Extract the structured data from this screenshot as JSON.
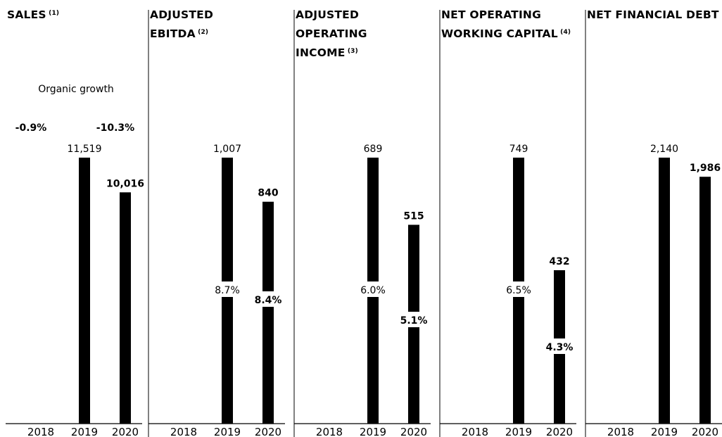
{
  "chart_data": [
    {
      "type": "bar",
      "title": "SALES",
      "note": "(1)",
      "categories": [
        "2018",
        "2019",
        "2020"
      ],
      "values": [
        null,
        11519,
        10016
      ],
      "labels": [
        "",
        "11,519",
        "10,016"
      ],
      "ratios": [
        "",
        "",
        ""
      ],
      "growth_caption": "Organic growth",
      "growth": [
        "-0.9%",
        "",
        "-10.3%"
      ]
    },
    {
      "type": "bar",
      "title": "ADJUSTED EBITDA",
      "note": "(2)",
      "categories": [
        "2018",
        "2019",
        "2020"
      ],
      "values": [
        null,
        1007,
        840
      ],
      "labels": [
        "",
        "1,007",
        "840"
      ],
      "ratios": [
        "",
        "8.7%",
        "8.4%"
      ]
    },
    {
      "type": "bar",
      "title": "ADJUSTED OPERATING INCOME",
      "note": "(3)",
      "categories": [
        "2018",
        "2019",
        "2020"
      ],
      "values": [
        null,
        689,
        515
      ],
      "labels": [
        "",
        "689",
        "515"
      ],
      "ratios": [
        "",
        "6.0%",
        "5.1%"
      ]
    },
    {
      "type": "bar",
      "title": "NET OPERATING WORKING CAPITAL",
      "note": "(4)",
      "categories": [
        "2018",
        "2019",
        "2020"
      ],
      "values": [
        null,
        749,
        432
      ],
      "labels": [
        "",
        "749",
        "432"
      ],
      "ratios": [
        "",
        "6.5%",
        "4.3%"
      ]
    },
    {
      "type": "bar",
      "title": "NET FINANCIAL DEBT",
      "note": "",
      "categories": [
        "2018",
        "2019",
        "2020"
      ],
      "values": [
        null,
        2140,
        1986
      ],
      "labels": [
        "",
        "2,140",
        "1,986"
      ],
      "ratios": [
        "",
        "",
        ""
      ]
    }
  ]
}
